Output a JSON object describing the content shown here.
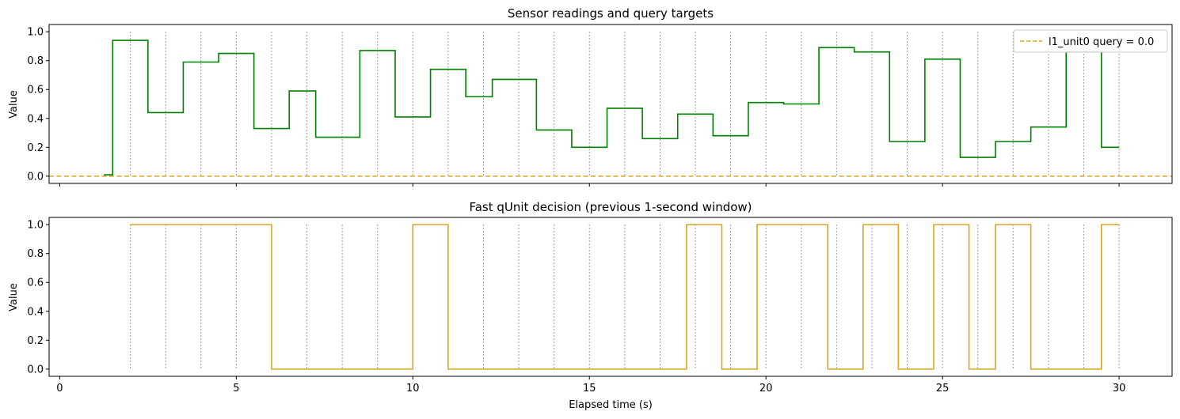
{
  "chart_data": [
    {
      "type": "line",
      "title": "Sensor readings and query targets",
      "xlabel": "",
      "ylabel": "Value",
      "xlim": [
        -0.3,
        31.5
      ],
      "ylim": [
        -0.05,
        1.05
      ],
      "xticks": [
        0,
        5,
        10,
        15,
        20,
        25,
        30
      ],
      "xtick_labels_shown": false,
      "yticks": [
        0.0,
        0.2,
        0.4,
        0.6,
        0.8,
        1.0
      ],
      "ytick_labels": [
        "0.0",
        "0.2",
        "0.4",
        "0.6",
        "0.8",
        "1.0"
      ],
      "vlines": [
        2,
        3,
        4,
        5,
        6,
        7,
        8,
        9,
        10,
        11,
        12,
        13,
        14,
        15,
        16,
        17,
        18,
        19,
        20,
        21,
        22,
        23,
        24,
        25,
        26,
        27,
        28,
        29,
        30
      ],
      "legend": {
        "placement": "top-right"
      },
      "series": [
        {
          "name": "",
          "color": "#008000",
          "style": "step-post",
          "x": [
            1.25,
            1.5,
            2.5,
            3.5,
            4.5,
            5.5,
            6.5,
            7.25,
            8.5,
            9.5,
            10.5,
            11.5,
            12.25,
            13.5,
            14.5,
            15.5,
            16.5,
            17.5,
            18.5,
            19.5,
            20.5,
            21.5,
            22.5,
            23.5,
            24.5,
            25.5,
            26.5,
            27.5,
            28.5,
            29.5,
            30.0
          ],
          "y": [
            0.01,
            0.94,
            0.44,
            0.79,
            0.85,
            0.33,
            0.59,
            0.27,
            0.87,
            0.41,
            0.74,
            0.55,
            0.67,
            0.32,
            0.2,
            0.47,
            0.26,
            0.43,
            0.28,
            0.51,
            0.5,
            0.89,
            0.86,
            0.24,
            0.81,
            0.13,
            0.24,
            0.34,
            0.86,
            0.2,
            0.2
          ]
        },
        {
          "name": "l1_unit0 query = 0.0",
          "color": "#DAA520",
          "style": "dashed",
          "hline": 0.0
        }
      ]
    },
    {
      "type": "line",
      "title": "Fast qUnit decision (previous 1-second window)",
      "xlabel": "Elapsed time (s)",
      "ylabel": "Value",
      "xlim": [
        -0.3,
        31.5
      ],
      "ylim": [
        -0.05,
        1.05
      ],
      "xticks": [
        0,
        5,
        10,
        15,
        20,
        25,
        30
      ],
      "xtick_labels": [
        "0",
        "5",
        "10",
        "15",
        "20",
        "25",
        "30"
      ],
      "yticks": [
        0.0,
        0.2,
        0.4,
        0.6,
        0.8,
        1.0
      ],
      "ytick_labels": [
        "0.0",
        "0.2",
        "0.4",
        "0.6",
        "0.8",
        "1.0"
      ],
      "vlines": [
        2,
        3,
        4,
        5,
        6,
        7,
        8,
        9,
        10,
        11,
        12,
        13,
        14,
        15,
        16,
        17,
        18,
        19,
        20,
        21,
        22,
        23,
        24,
        25,
        26,
        27,
        28,
        29,
        30
      ],
      "series": [
        {
          "name": "",
          "color": "#DAA520",
          "style": "step-post",
          "x": [
            2.0,
            6.0,
            10.0,
            11.0,
            17.75,
            18.75,
            19.75,
            21.75,
            22.75,
            23.75,
            24.75,
            25.75,
            26.5,
            27.5,
            29.5,
            30.0
          ],
          "y": [
            1,
            0,
            1,
            0,
            1,
            0,
            1,
            0,
            1,
            0,
            1,
            0,
            1,
            0,
            1,
            1
          ]
        }
      ]
    }
  ]
}
